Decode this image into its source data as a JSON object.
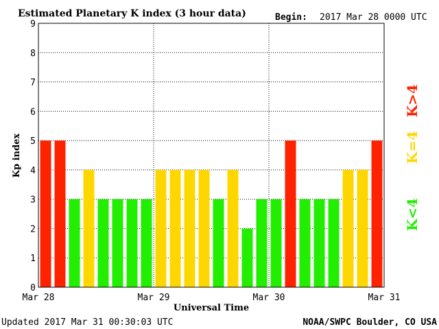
{
  "header": {
    "title": "Estimated Planetary K index (3 hour data)",
    "begin_label": "Begin:",
    "begin_value": "2017 Mar 28 0000 UTC"
  },
  "footer": {
    "updated": "Updated 2017 Mar 31 00:30:03 UTC",
    "source": "NOAA/SWPC Boulder, CO USA"
  },
  "legend": [
    {
      "label": "K<4",
      "color": "#22ee00"
    },
    {
      "label": "K=4",
      "color": "#ffd700"
    },
    {
      "label": "K>4",
      "color": "#ff2200"
    }
  ],
  "colors": {
    "low": "#22ee00",
    "mid": "#ffd700",
    "high": "#ff2200"
  },
  "chart_data": {
    "type": "bar",
    "title": "Estimated Planetary K index (3 hour data)",
    "xlabel": "Universal Time",
    "ylabel": "Kp index",
    "ylim": [
      0,
      9
    ],
    "yticks": [
      "0",
      "1",
      "2",
      "3",
      "4",
      "5",
      "6",
      "7",
      "8",
      "9"
    ],
    "xticks": [
      "Mar 28",
      "Mar 29",
      "Mar 30",
      "Mar 31"
    ],
    "grid": "dotted",
    "values": [
      5,
      5,
      3,
      4,
      3,
      3,
      3,
      3,
      4,
      4,
      4,
      4,
      3,
      4,
      2,
      3,
      3,
      5,
      3,
      3,
      3,
      4,
      4,
      5
    ]
  }
}
